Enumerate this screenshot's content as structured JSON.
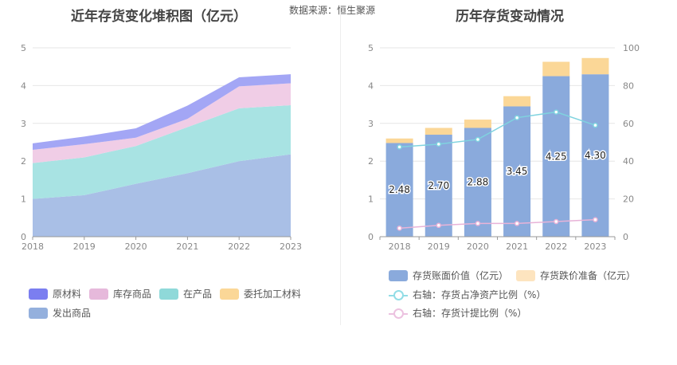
{
  "left": {
    "title": "近年存货变化堆积图（亿元）",
    "source": "数据来源：恒生聚源",
    "legend": [
      {
        "name": "原材料",
        "color": "#7b7ef0"
      },
      {
        "name": "库存商品",
        "color": "#e6b9db"
      },
      {
        "name": "在产品",
        "color": "#8fd9d9"
      },
      {
        "name": "委托加工材料",
        "color": "#fbd797"
      },
      {
        "name": "发出商品",
        "color": "#94b0dd"
      }
    ]
  },
  "right": {
    "title": "历年存货变动情况",
    "legend": [
      {
        "name": "存货账面价值（亿元）",
        "color": "#8aaadc",
        "kind": "bar"
      },
      {
        "name": "存货跌价准备（亿元）",
        "color": "#fde4bf",
        "kind": "bar"
      },
      {
        "name": "右轴：存货占净资产比例（%）",
        "color": "#92dde6",
        "kind": "line"
      },
      {
        "name": "右轴：存货计提比例（%）",
        "color": "#ecc2e0",
        "kind": "line"
      }
    ]
  },
  "chart_data": [
    {
      "type": "area",
      "title": "近年存货变化堆积图（亿元）",
      "x": [
        "2018",
        "2019",
        "2020",
        "2021",
        "2022",
        "2023"
      ],
      "ylim": [
        0,
        5
      ],
      "yticks": [
        "0",
        "1",
        "2",
        "3",
        "4",
        "5"
      ],
      "stacked": true,
      "series": [
        {
          "name": "发出商品",
          "color": "#a9bfe6",
          "values": [
            1.0,
            1.1,
            1.4,
            1.68,
            2.0,
            2.18
          ]
        },
        {
          "name": "在产品",
          "color": "#a8e3e3",
          "values": [
            0.95,
            1.0,
            1.0,
            1.22,
            1.4,
            1.3
          ]
        },
        {
          "name": "委托加工材料",
          "color": "#fbd797",
          "values": [
            0.0,
            0.0,
            0.0,
            0.0,
            0.0,
            0.0
          ]
        },
        {
          "name": "库存商品",
          "color": "#f0cde6",
          "values": [
            0.35,
            0.35,
            0.22,
            0.22,
            0.58,
            0.58
          ]
        },
        {
          "name": "原材料",
          "color": "#a3a6f5",
          "values": [
            0.17,
            0.2,
            0.25,
            0.35,
            0.24,
            0.24
          ]
        }
      ]
    },
    {
      "type": "bar",
      "title": "历年存货变动情况",
      "categories": [
        "2018",
        "2019",
        "2020",
        "2021",
        "2022",
        "2023"
      ],
      "ylim": [
        0,
        5
      ],
      "y2lim": [
        0,
        100
      ],
      "yticks": [
        "0",
        "1",
        "2",
        "3",
        "4",
        "5"
      ],
      "y2ticks": [
        "0",
        "20",
        "40",
        "60",
        "80",
        "100"
      ],
      "stacked": true,
      "series": [
        {
          "name": "存货账面价值（亿元）",
          "type": "bar",
          "color": "#8aaadc",
          "values": [
            2.48,
            2.7,
            2.88,
            3.45,
            4.25,
            4.3
          ],
          "labels": [
            "2.48",
            "2.70",
            "2.88",
            "3.45",
            "4.25",
            "4.30"
          ]
        },
        {
          "name": "存货跌价准备（亿元）",
          "type": "bar",
          "color": "#fbd797",
          "values": [
            0.12,
            0.18,
            0.22,
            0.27,
            0.38,
            0.43
          ]
        },
        {
          "name": "右轴：存货占净资产比例（%）",
          "type": "line",
          "axis": "right",
          "color": "#7fd3df",
          "values": [
            47.5,
            49,
            51.5,
            63,
            66,
            59
          ]
        },
        {
          "name": "右轴：存货计提比例（%）",
          "type": "line",
          "axis": "right",
          "color": "#e8b3d8",
          "values": [
            4.5,
            6,
            7,
            7,
            8,
            9
          ]
        }
      ]
    }
  ]
}
